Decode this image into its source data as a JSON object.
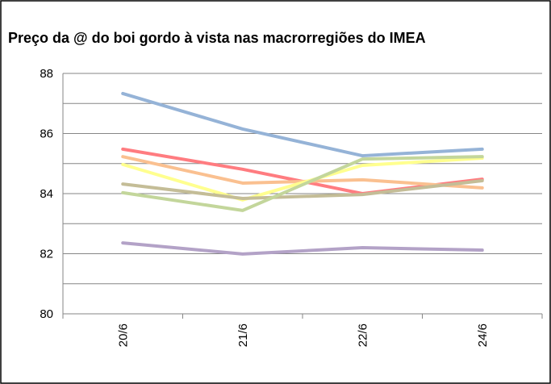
{
  "chart_data": {
    "type": "line",
    "title": "Preço da @ do boi gordo à vista nas macrorregiões do IMEA",
    "categories": [
      "20/6",
      "21/6",
      "22/6",
      "24/6"
    ],
    "series": [
      {
        "color": "#95b3d7",
        "values": [
          87.33,
          86.15,
          85.26,
          85.48
        ]
      },
      {
        "color": "#ff7c80",
        "values": [
          85.48,
          84.81,
          84.0,
          84.48
        ]
      },
      {
        "color": "#fac090",
        "values": [
          85.23,
          84.35,
          84.46,
          84.19
        ]
      },
      {
        "color": "#ffff8f",
        "values": [
          84.97,
          83.79,
          84.94,
          85.18
        ]
      },
      {
        "color": "#c4bd97",
        "values": [
          84.32,
          83.84,
          83.97,
          84.43
        ]
      },
      {
        "color": "#c3d69b",
        "values": [
          84.03,
          83.44,
          85.15,
          85.23
        ]
      },
      {
        "color": "#b3a2c7",
        "values": [
          82.36,
          81.99,
          82.2,
          82.12
        ]
      }
    ],
    "ylim": [
      80,
      88
    ],
    "yticks": [
      80,
      82,
      84,
      86,
      88
    ],
    "minor_yticks": [
      81,
      83,
      85,
      87
    ],
    "grid": true
  }
}
